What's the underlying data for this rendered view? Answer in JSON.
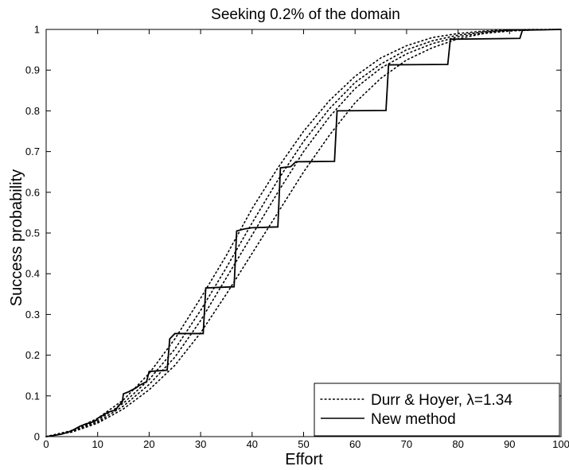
{
  "chart_data": {
    "type": "line",
    "title": "Seeking 0.2% of the domain",
    "xlabel": "Effort",
    "ylabel": "Success probability",
    "xlim": [
      0,
      100
    ],
    "ylim": [
      0,
      1
    ],
    "xticks": [
      0,
      10,
      20,
      30,
      40,
      50,
      60,
      70,
      80,
      90,
      100
    ],
    "yticks": [
      0,
      0.1,
      0.2,
      0.3,
      0.4,
      0.5,
      0.6,
      0.7,
      0.8,
      0.9,
      1
    ],
    "xtick_labels": [
      "0",
      "10",
      "20",
      "30",
      "40",
      "50",
      "60",
      "70",
      "80",
      "90",
      "100"
    ],
    "ytick_labels": [
      "0",
      "0.1",
      "0.2",
      "0.3",
      "0.4",
      "0.5",
      "0.6",
      "0.7",
      "0.8",
      "0.9",
      "1"
    ],
    "grid": false,
    "legend_position": "bottom-right",
    "series": [
      {
        "name": "Durr & Hoyer, λ=1.34",
        "style": "dotted",
        "color": "#000000",
        "curves": [
          {
            "x": [
              0,
              5,
              10,
              15,
              20,
              25,
              30,
              35,
              40,
              45,
              50,
              55,
              60,
              65,
              70,
              75,
              80,
              85,
              90,
              95,
              100
            ],
            "y": [
              0,
              0.015,
              0.045,
              0.09,
              0.155,
              0.24,
              0.34,
              0.445,
              0.56,
              0.66,
              0.75,
              0.825,
              0.885,
              0.93,
              0.96,
              0.98,
              0.99,
              0.996,
              0.999,
              1.0,
              1.0
            ]
          },
          {
            "x": [
              0,
              5,
              10,
              15,
              20,
              25,
              30,
              35,
              40,
              45,
              50,
              55,
              60,
              65,
              70,
              75,
              80,
              85,
              90,
              95,
              100
            ],
            "y": [
              0,
              0.013,
              0.04,
              0.082,
              0.14,
              0.215,
              0.31,
              0.415,
              0.525,
              0.63,
              0.725,
              0.805,
              0.87,
              0.915,
              0.95,
              0.972,
              0.986,
              0.994,
              0.998,
              0.999,
              1.0
            ]
          },
          {
            "x": [
              0,
              5,
              10,
              15,
              20,
              25,
              30,
              35,
              40,
              45,
              50,
              55,
              60,
              65,
              70,
              75,
              80,
              85,
              90,
              95,
              100
            ],
            "y": [
              0,
              0.012,
              0.036,
              0.075,
              0.128,
              0.195,
              0.285,
              0.39,
              0.495,
              0.6,
              0.7,
              0.785,
              0.855,
              0.905,
              0.94,
              0.965,
              0.982,
              0.992,
              0.997,
              0.999,
              1.0
            ]
          },
          {
            "x": [
              0,
              5,
              10,
              15,
              20,
              25,
              30,
              35,
              40,
              45,
              50,
              55,
              60,
              65,
              70,
              75,
              80,
              85,
              90,
              95,
              100
            ],
            "y": [
              0,
              0.011,
              0.033,
              0.068,
              0.115,
              0.175,
              0.255,
              0.35,
              0.45,
              0.55,
              0.65,
              0.74,
              0.82,
              0.88,
              0.925,
              0.955,
              0.977,
              0.99,
              0.996,
              0.999,
              1.0
            ]
          }
        ]
      },
      {
        "name": "New method",
        "style": "solid",
        "color": "#000000",
        "curves": [
          {
            "x": [
              0,
              1.5,
              3,
              4.5,
              5.5,
              6.5,
              7.5,
              8.5,
              9.5,
              10,
              11,
              12,
              13.5,
              14,
              14.8,
              15,
              16,
              17.5,
              18,
              19.5,
              20,
              23.5,
              24,
              25,
              30.5,
              31,
              36.5,
              37,
              38.5,
              40,
              45,
              45.5,
              47.5,
              48.5,
              56,
              56.5,
              66,
              66.5,
              78,
              78.5,
              92,
              92.5,
              100
            ],
            "y": [
              0,
              0.003,
              0.006,
              0.012,
              0.018,
              0.025,
              0.03,
              0.034,
              0.038,
              0.045,
              0.052,
              0.06,
              0.065,
              0.075,
              0.085,
              0.105,
              0.11,
              0.12,
              0.125,
              0.135,
              0.16,
              0.163,
              0.24,
              0.253,
              0.253,
              0.365,
              0.368,
              0.505,
              0.51,
              0.513,
              0.515,
              0.66,
              0.663,
              0.675,
              0.676,
              0.8,
              0.801,
              0.913,
              0.914,
              0.976,
              0.978,
              0.998,
              1.0
            ]
          }
        ]
      }
    ]
  }
}
